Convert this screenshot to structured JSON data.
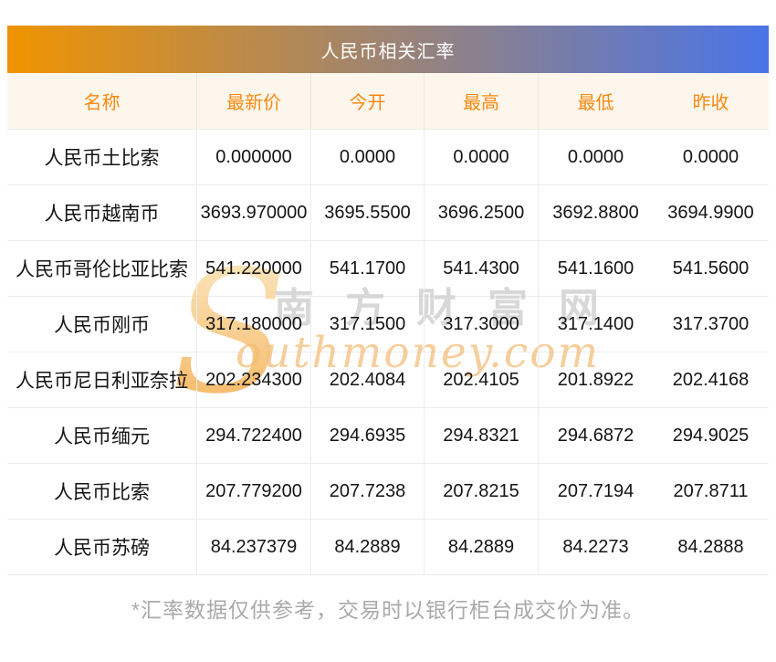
{
  "title": "人民币相关汇率",
  "table": {
    "headers": [
      "名称",
      "最新价",
      "今开",
      "最高",
      "最低",
      "昨收"
    ],
    "column_keys": [
      "name",
      "latest",
      "open",
      "high",
      "low",
      "prev-close"
    ],
    "rows": [
      {
        "name": "人民币土比索",
        "values": [
          "0.000000",
          "0.0000",
          "0.0000",
          "0.0000",
          "0.0000"
        ]
      },
      {
        "name": "人民币越南币",
        "values": [
          "3693.970000",
          "3695.5500",
          "3696.2500",
          "3692.8800",
          "3694.9900"
        ]
      },
      {
        "name": "人民币哥伦比亚比索",
        "values": [
          "541.220000",
          "541.1700",
          "541.4300",
          "541.1600",
          "541.5600"
        ]
      },
      {
        "name": "人民币刚币",
        "values": [
          "317.180000",
          "317.1500",
          "317.3000",
          "317.1400",
          "317.3700"
        ]
      },
      {
        "name": "人民币尼日利亚奈拉",
        "values": [
          "202.234300",
          "202.4084",
          "202.4105",
          "201.8922",
          "202.4168"
        ]
      },
      {
        "name": "人民币缅元",
        "values": [
          "294.722400",
          "294.6935",
          "294.8321",
          "294.6872",
          "294.9025"
        ]
      },
      {
        "name": "人民币比索",
        "values": [
          "207.779200",
          "207.7238",
          "207.8215",
          "207.7194",
          "207.8711"
        ]
      },
      {
        "name": "人民币苏磅",
        "values": [
          "84.237379",
          "84.2889",
          "84.2889",
          "84.2273",
          "84.2888"
        ]
      }
    ]
  },
  "watermark": {
    "initial": "S",
    "cn_text": "南方财富网",
    "en_text": "outhmoney.com"
  },
  "footer": {
    "note": "*汇率数据仅供参考，交易时以银行柜台成交价为准。"
  },
  "colors": {
    "title_gradient_left": "#f09400",
    "title_gradient_right": "#4a74e8",
    "header_bg": "#fdf6ed",
    "header_text": "#f7890f",
    "body_text": "#141414",
    "border": "#ececec",
    "footer_text": "#a9a9a9",
    "watermark_gray": "#d2d2d2",
    "watermark_orange": "#f3bc77"
  }
}
